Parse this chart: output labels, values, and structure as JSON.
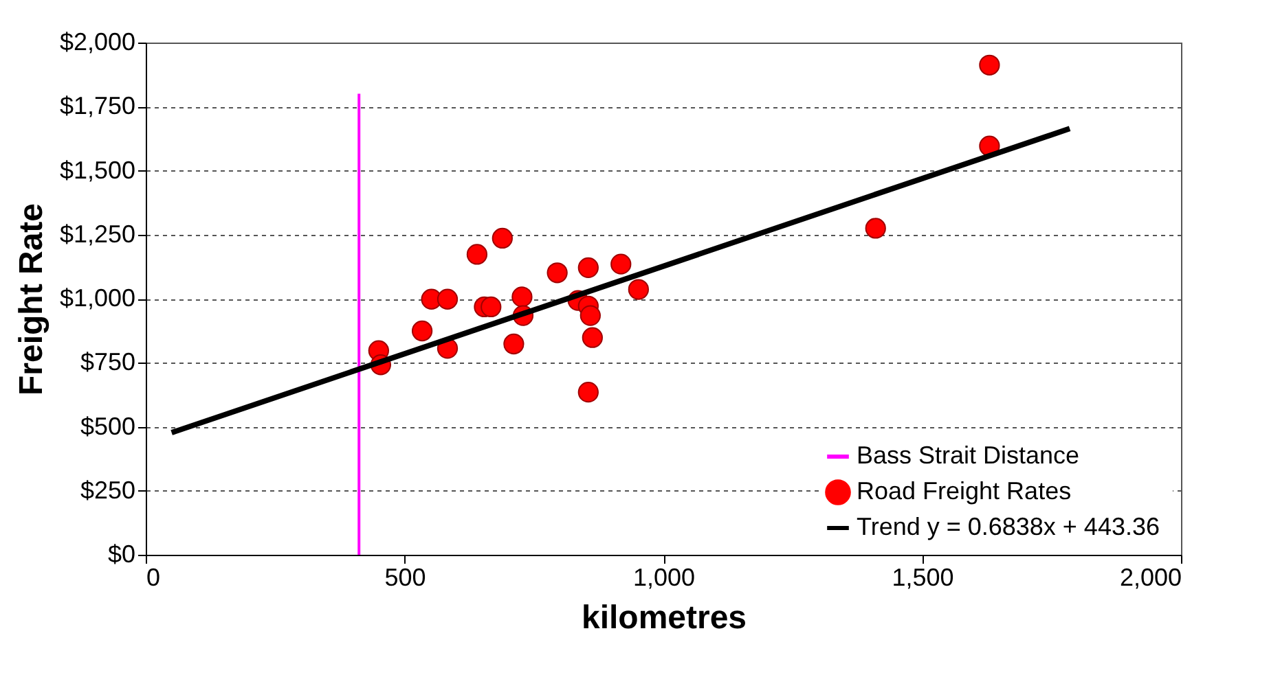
{
  "chart_data": {
    "type": "scatter",
    "xlabel": "kilometres",
    "ylabel": "Freight Rate",
    "xlim": [
      0,
      2000
    ],
    "xticks": [
      0,
      500,
      {
        "value": 1000,
        "label": "1,000"
      },
      {
        "value": 1500,
        "label": "1,500"
      },
      {
        "value": 2000,
        "label": "2,000"
      }
    ],
    "ylim": [
      0,
      2000
    ],
    "yticks": [
      {
        "value": 0,
        "label": "$0"
      },
      {
        "value": 250,
        "label": "$250"
      },
      {
        "value": 500,
        "label": "$500"
      },
      {
        "value": 750,
        "label": "$750"
      },
      {
        "value": 1000,
        "label": "$1,000"
      },
      {
        "value": 1250,
        "label": "$1,250"
      },
      {
        "value": 1500,
        "label": "$1,500"
      },
      {
        "value": 1750,
        "label": "$1,750"
      },
      {
        "value": 2000,
        "label": "$2,000"
      }
    ],
    "grid": "y",
    "legend": "bottom right",
    "series": [
      {
        "name": "Bass Strait Distance",
        "type": "line",
        "color": "#ff00ff",
        "x": [
          412,
          412
        ],
        "values": [
          0,
          1800
        ]
      },
      {
        "name": "Road Freight Rates",
        "marker": "circle",
        "color": "#ff0000",
        "x": [
          450,
          454,
          534,
          552,
          583,
          583,
          640,
          689,
          654,
          667,
          711,
          727,
          729,
          795,
          835,
          855,
          855,
          859,
          863,
          855,
          918,
          952,
          1410,
          1630,
          1630
        ],
        "values": [
          797,
          742,
          874,
          998,
          998,
          806,
          1173,
          1236,
          968,
          968,
          823,
          1007,
          934,
          1101,
          993,
          1121,
          971,
          934,
          848,
          635,
          1135,
          1036,
          1275,
          1912,
          1596
        ]
      },
      {
        "name": "Trend  y = 0.6838x + 443.36",
        "type": "line",
        "color": "#000000",
        "x": [
          50,
          1785
        ],
        "values": [
          477,
          1664
        ]
      }
    ]
  }
}
